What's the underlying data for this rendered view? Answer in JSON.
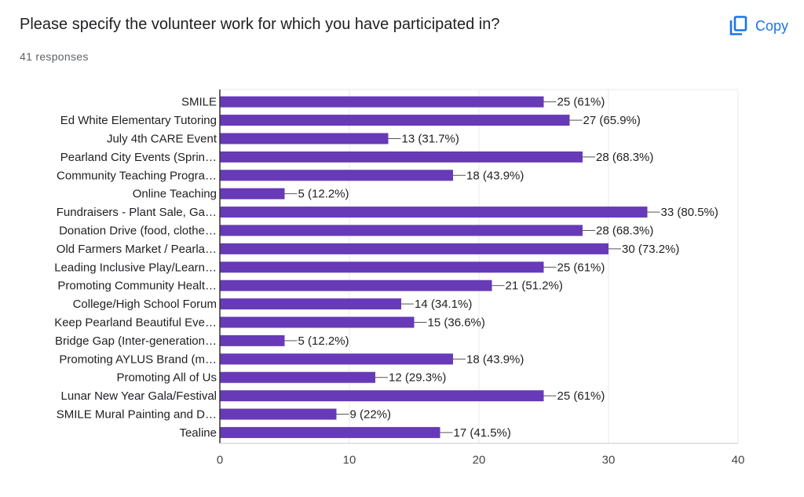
{
  "header": {
    "question": "Please specify the volunteer work for which you have participated in?",
    "responses": "41 responses",
    "copy_label": "Copy",
    "copy_icon": "copy-icon"
  },
  "colors": {
    "bar": "#673ab7",
    "accent": "#1a73e8",
    "grid": "#e8e8e8",
    "axis": "#333333"
  },
  "chart_data": {
    "type": "bar",
    "orientation": "horizontal",
    "title": "",
    "xlabel": "",
    "ylabel": "",
    "xlim": [
      0,
      40
    ],
    "xticks": [
      0,
      10,
      20,
      30,
      40
    ],
    "grid": true,
    "categories": [
      "SMILE",
      "Ed White Elementary Tutoring",
      "July 4th CARE Event",
      "Pearland City Events (Sprin…",
      "Community Teaching Progra…",
      "Online Teaching",
      "Fundraisers - Plant Sale, Ga…",
      "Donation Drive (food, clothe…",
      "Old Farmers Market / Pearla…",
      "Leading Inclusive Play/Learn…",
      "Promoting Community Healt…",
      "College/High School Forum",
      "Keep Pearland Beautiful Eve…",
      "Bridge Gap (Inter-generation…",
      "Promoting AYLUS Brand (m…",
      "Promoting All of Us",
      "Lunar New Year Gala/Festival",
      "SMILE Mural Painting and D…",
      "Tealine"
    ],
    "values": [
      25,
      27,
      13,
      28,
      18,
      5,
      33,
      28,
      30,
      25,
      21,
      14,
      15,
      5,
      18,
      12,
      25,
      9,
      17
    ],
    "labels": [
      "25 (61%)",
      "27 (65.9%)",
      "13 (31.7%)",
      "28 (68.3%)",
      "18 (43.9%)",
      "5 (12.2%)",
      "33 (80.5%)",
      "28 (68.3%)",
      "30 (73.2%)",
      "25 (61%)",
      "21 (51.2%)",
      "14 (34.1%)",
      "15 (36.6%)",
      "5 (12.2%)",
      "18 (43.9%)",
      "12 (29.3%)",
      "25 (61%)",
      "9 (22%)",
      "17 (41.5%)"
    ]
  }
}
